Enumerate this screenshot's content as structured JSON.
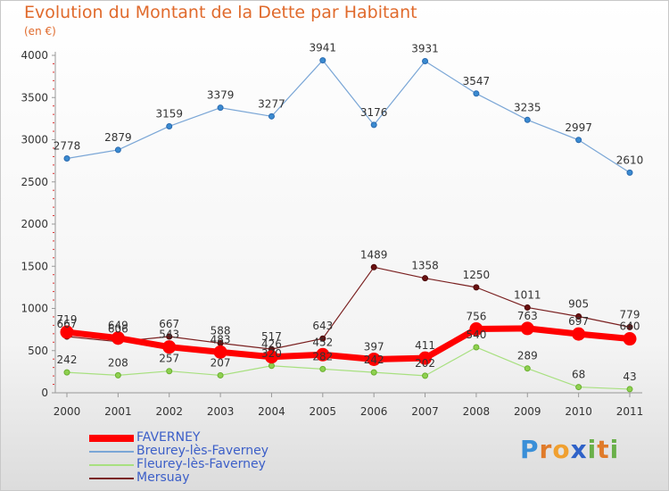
{
  "header": {
    "title": "Evolution du Montant de la Dette par Habitant",
    "unit": "(en €)"
  },
  "logo": {
    "text": "Proxiti",
    "letters": [
      "P",
      "r",
      "o",
      "x",
      "i",
      "t",
      "i"
    ],
    "colors": [
      "#3a8fd8",
      "#e07b2a",
      "#f0a030",
      "#2f62c8",
      "#6ab04a",
      "#e07b2a",
      "#6ab04a"
    ]
  },
  "chart_data": {
    "type": "line",
    "title": "Evolution du Montant de la Dette par Habitant",
    "ylabel": "(en €)",
    "xlabel": "",
    "x": [
      "2000",
      "2001",
      "2002",
      "2003",
      "2004",
      "2005",
      "2006",
      "2007",
      "2008",
      "2009",
      "2010",
      "2011"
    ],
    "ylim": [
      0,
      4000
    ],
    "yticks": [
      0,
      500,
      1000,
      1500,
      2000,
      2500,
      3000,
      3500,
      4000
    ],
    "grid": false,
    "legend_position": "bottom-left",
    "series": [
      {
        "name": "FAVERNEY",
        "color": "#ff0000",
        "values": [
          719,
          649,
          543,
          483,
          426,
          452,
          397,
          411,
          756,
          763,
          697,
          640
        ],
        "labels": [
          "719",
          "649",
          "543",
          "483",
          "426",
          "452",
          "397",
          "411",
          "756",
          "763",
          "697",
          "640"
        ]
      },
      {
        "name": "Breurey-lès-Faverney",
        "color": "#7aa6d6",
        "values": [
          2778,
          2879,
          3159,
          3379,
          3277,
          3941,
          3176,
          3931,
          3547,
          3235,
          2997,
          2610
        ],
        "labels": [
          "2778",
          "2879",
          "3159",
          "3379",
          "3277",
          "3941",
          "3176",
          "3931",
          "3547",
          "3235",
          "2997",
          "2610"
        ]
      },
      {
        "name": "Fleurey-lès-Faverney",
        "color": "#a8e080",
        "values": [
          242,
          208,
          257,
          207,
          320,
          282,
          242,
          202,
          540,
          289,
          68,
          43
        ],
        "labels": [
          "242",
          "208",
          "257",
          "207",
          "320",
          "282",
          "242",
          "202",
          "540",
          "289",
          "68",
          "43"
        ]
      },
      {
        "name": "Mersuay",
        "color": "#7a2020",
        "values": [
          667,
          606,
          667,
          588,
          517,
          643,
          1489,
          1358,
          1250,
          1011,
          905,
          779
        ],
        "labels": [
          "667",
          "606",
          "667",
          "588",
          "517",
          "643",
          "1489",
          "1358",
          "1250",
          "1011",
          "905",
          "779"
        ]
      }
    ]
  }
}
